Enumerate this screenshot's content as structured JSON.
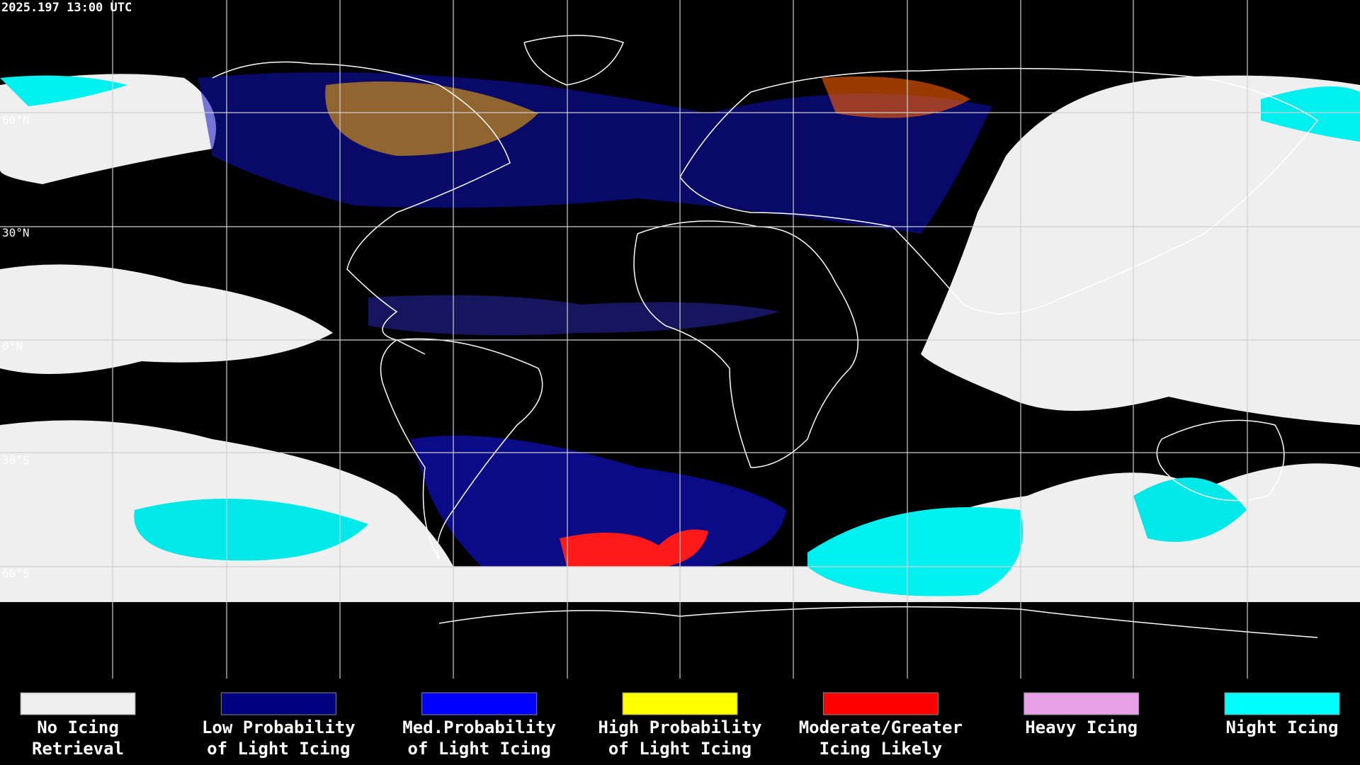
{
  "header": {
    "timestamp": "2025.197 13:00 UTC"
  },
  "latitude_labels": [
    "60°N",
    "30°N",
    "0°N",
    "30°S",
    "60°S"
  ],
  "legend": {
    "items": [
      {
        "lines": [
          "No Icing",
          "Retrieval"
        ],
        "color": "#eeeeee"
      },
      {
        "lines": [
          "Low Probability",
          "of Light Icing"
        ],
        "color": "#000080"
      },
      {
        "lines": [
          "Med.Probability",
          "of Light Icing"
        ],
        "color": "#0000ff"
      },
      {
        "lines": [
          "High Probability",
          "of Light Icing"
        ],
        "color": "#ffff00"
      },
      {
        "lines": [
          "Moderate/Greater",
          "Icing Likely"
        ],
        "color": "#ff0000"
      },
      {
        "lines": [
          "Heavy Icing"
        ],
        "color": "#e6a0e6"
      },
      {
        "lines": [
          "Night Icing"
        ],
        "color": "#00ffff"
      }
    ]
  }
}
